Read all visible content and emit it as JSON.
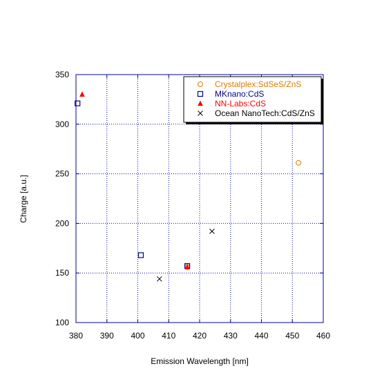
{
  "chart_data": {
    "type": "scatter",
    "xlabel": "Emission Wavelength [nm]",
    "ylabel": "Charge [a.u.]",
    "xlim": [
      380,
      460
    ],
    "ylim": [
      100,
      350
    ],
    "xticks": [
      380,
      390,
      400,
      410,
      420,
      430,
      440,
      450,
      460
    ],
    "yticks": [
      100,
      150,
      200,
      250,
      300,
      350
    ],
    "grid": true,
    "legend_position": "top-right",
    "series": [
      {
        "name": "Crystalplex:SdSeS/ZnS",
        "marker": "circle-open",
        "color": "#e07b00",
        "points": [
          {
            "x": 452,
            "y": 261
          },
          {
            "x": 416,
            "y": 156
          }
        ]
      },
      {
        "name": "MKnano:CdS",
        "marker": "square-open",
        "color": "#00008b",
        "points": [
          {
            "x": 380.5,
            "y": 321
          },
          {
            "x": 401,
            "y": 168
          },
          {
            "x": 416,
            "y": 157
          }
        ]
      },
      {
        "name": "NN-Labs:CdS",
        "marker": "triangle-filled",
        "color": "#ff0000",
        "points": [
          {
            "x": 382,
            "y": 330
          },
          {
            "x": 416,
            "y": 156
          }
        ]
      },
      {
        "name": "Ocean NanoTech:CdS/ZnS",
        "marker": "x",
        "color": "#000000",
        "points": [
          {
            "x": 407,
            "y": 144
          },
          {
            "x": 424,
            "y": 192
          }
        ]
      }
    ]
  }
}
